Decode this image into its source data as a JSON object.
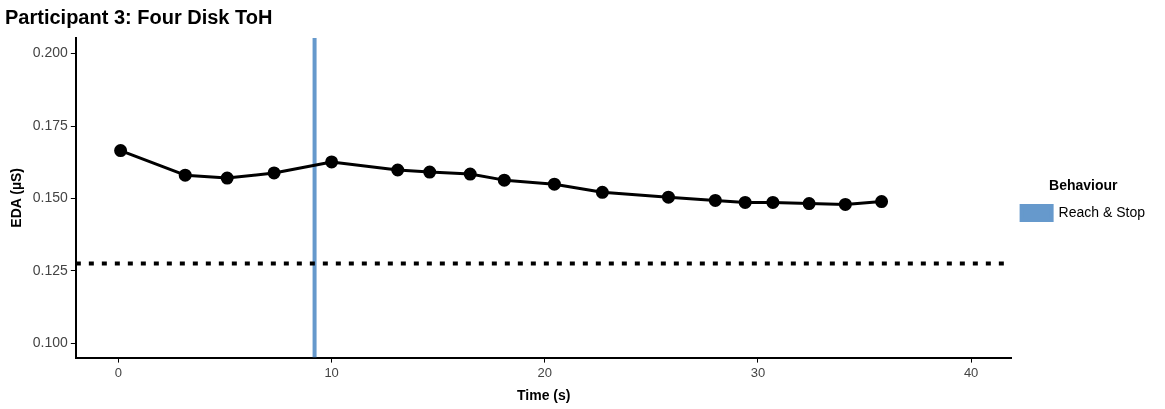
{
  "chart_data": {
    "type": "line",
    "title": "Participant 3: Four Disk ToH",
    "xlabel": "Time (s)",
    "ylabel": "EDA (µS)",
    "legend_title": "Behaviour",
    "legend": "right",
    "grid": false,
    "marker": "circle",
    "line_style": "solid",
    "x": [
      0.1,
      3.13,
      5.1,
      7.3,
      10.0,
      13.1,
      14.6,
      16.5,
      18.1,
      20.45,
      22.7,
      25.8,
      28.0,
      29.4,
      30.7,
      32.4,
      34.1,
      35.8
    ],
    "series": [
      {
        "color": "#000000",
        "values": [
          0.1665,
          0.158,
          0.157,
          0.1588,
          0.1626,
          0.1598,
          0.1591,
          0.1584,
          0.1563,
          0.1549,
          0.1521,
          0.1504,
          0.1493,
          0.1486,
          0.1486,
          0.1482,
          0.1479,
          0.1489
        ]
      },
      {
        "name": "Reach & Stop",
        "color": "#6699cc",
        "marker": "none",
        "x": [
          9.2,
          9.2
        ],
        "values": [
          0.095,
          0.2054
        ]
      }
    ],
    "xlim": [
      -2,
      41.9
    ],
    "xticks": [
      0,
      10,
      20,
      30,
      40
    ],
    "ylim": [
      0.095,
      0.2054
    ],
    "yticks": [
      {
        "value": 0.1,
        "label": "0.100"
      },
      {
        "value": 0.125,
        "label": "0.125"
      },
      {
        "value": 0.15,
        "label": "0.150"
      },
      {
        "value": 0.175,
        "label": "0.175"
      },
      {
        "value": 0.2,
        "label": "0.200"
      }
    ],
    "ref_lines": [
      {
        "axis": "y",
        "value": 0.1275,
        "color": "#000000",
        "line_style": "dotted"
      }
    ]
  }
}
